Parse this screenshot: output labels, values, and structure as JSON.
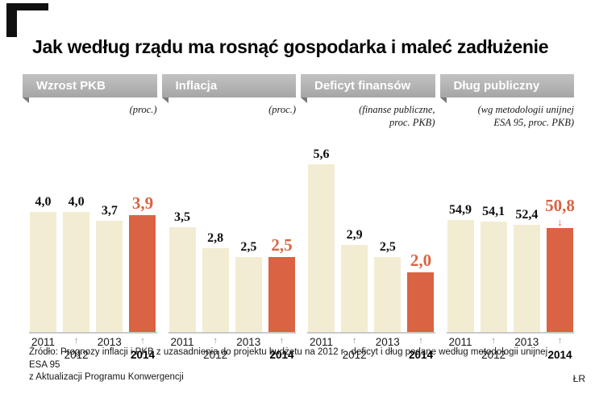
{
  "title": "Jak według rządu ma rosnąć gospodarka i maleć zadłużenie",
  "footer": {
    "source": "Źródło: Prognozy inflacji i PKB z uzasadnienia do projektu budżetu na 2012 r., deficyt i dług podane według metodologii unijnej ESA 95\nz Aktualizacji Programu Konwergencji",
    "credit": "ŁR"
  },
  "colors": {
    "bar": "#f2ecd2",
    "highlight": "#d96342",
    "header_bg": "#b2b2b2",
    "header_fold": "#7a7a7a",
    "axis_line": "#c9c9c9"
  },
  "chart_data": [
    {
      "type": "bar",
      "title": "Wzrost PKB",
      "unit": "(proc.)",
      "categories": [
        "2011",
        "2012",
        "2013",
        "2014"
      ],
      "values": [
        4.0,
        4.0,
        3.7,
        3.9
      ],
      "labels": [
        "4,0",
        "4,0",
        "3,7",
        "3,9"
      ],
      "highlight_index": 3,
      "highlight_arrow": false,
      "ylim": [
        0,
        5.65
      ]
    },
    {
      "type": "bar",
      "title": "Inflacja",
      "unit": "(proc.)",
      "categories": [
        "2011",
        "2012",
        "2013",
        "2014"
      ],
      "values": [
        3.5,
        2.8,
        2.5,
        2.5
      ],
      "labels": [
        "3,5",
        "2,8",
        "2,5",
        "2,5"
      ],
      "highlight_index": 3,
      "highlight_arrow": false,
      "ylim": [
        0,
        5.65
      ]
    },
    {
      "type": "bar",
      "title": "Deficyt finansów",
      "unit": "(finanse publiczne,\nproc. PKB)",
      "categories": [
        "2011",
        "2012",
        "2013",
        "2014"
      ],
      "values": [
        5.6,
        2.9,
        2.5,
        2.0
      ],
      "labels": [
        "5,6",
        "2,9",
        "2,5",
        "2,0"
      ],
      "highlight_index": 3,
      "highlight_arrow": false,
      "ylim": [
        0,
        5.65
      ]
    },
    {
      "type": "bar",
      "title": "Dług publiczny",
      "unit": "(wg metodologii unijnej\nESA 95, proc. PKB)",
      "categories": [
        "2011",
        "2012",
        "2013",
        "2014"
      ],
      "values": [
        54.9,
        54.1,
        52.4,
        50.8
      ],
      "labels": [
        "54,9",
        "54,1",
        "52,4",
        "50,8"
      ],
      "highlight_index": 3,
      "highlight_arrow": true,
      "ylim": [
        0,
        83
      ]
    }
  ]
}
